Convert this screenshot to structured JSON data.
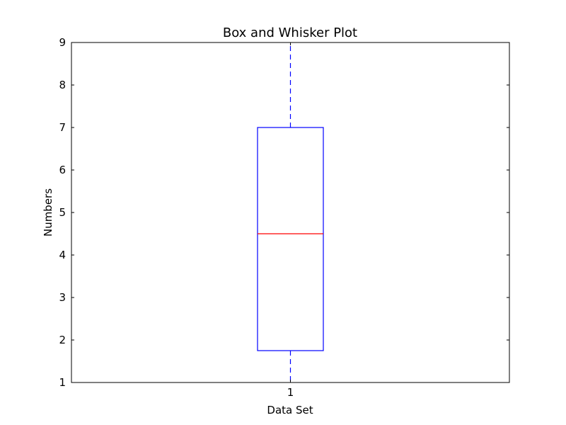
{
  "chart_data": {
    "type": "box",
    "title": "Box and Whisker Plot",
    "xlabel": "Data Set",
    "ylabel": "Numbers",
    "ylim": [
      1,
      9
    ],
    "yticks": [
      "1",
      "2",
      "3",
      "4",
      "5",
      "6",
      "7",
      "8",
      "9"
    ],
    "categories": [
      "1"
    ],
    "boxes": [
      {
        "category": "1",
        "whisker_low": 1,
        "q1": 1.75,
        "median": 4.5,
        "q3": 7,
        "whisker_high": 9
      }
    ],
    "grid": false,
    "colors": {
      "box": "#0000ff",
      "median": "#ff0000",
      "whisker": "#0000ff",
      "cap": "#000000",
      "axes": "#000000"
    }
  }
}
